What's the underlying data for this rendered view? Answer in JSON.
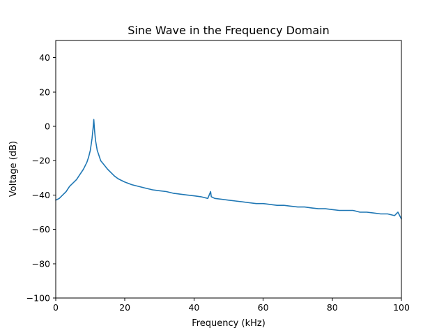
{
  "chart_data": {
    "type": "line",
    "title": "Sine Wave in the Frequency Domain",
    "xlabel": "Frequency (kHz)",
    "ylabel": "Voltage (dB)",
    "xlim": [
      0,
      100
    ],
    "ylim": [
      -100,
      50
    ],
    "xticks": [
      0,
      20,
      40,
      60,
      80,
      100
    ],
    "yticks": [
      -100,
      -80,
      -60,
      -40,
      -20,
      0,
      20,
      40
    ],
    "xtick_labels": [
      "0",
      "20",
      "40",
      "60",
      "80",
      "100"
    ],
    "ytick_labels": [
      "−100",
      "−80",
      "−60",
      "−40",
      "−20",
      "0",
      "20",
      "40"
    ],
    "grid": false,
    "legend": false,
    "color": "#1f77b4",
    "series": [
      {
        "x": [
          0,
          1,
          2,
          3,
          4,
          5,
          6,
          7,
          8,
          9,
          9.5,
          10,
          10.5,
          10.8,
          11,
          11.2,
          11.5,
          12,
          12.5,
          13,
          14,
          15,
          16,
          17,
          18,
          19,
          20,
          22,
          24,
          26,
          28,
          30,
          32,
          34,
          36,
          38,
          40,
          42,
          44,
          44.8,
          45,
          46,
          48,
          50,
          52,
          54,
          56,
          58,
          60,
          62,
          64,
          66,
          68,
          70,
          72,
          74,
          76,
          78,
          80,
          82,
          84,
          86,
          88,
          90,
          92,
          94,
          96,
          98,
          99,
          100
        ],
        "values": [
          -43,
          -42,
          -40,
          -38,
          -35,
          -33,
          -31,
          -28,
          -25,
          -21,
          -18,
          -14,
          -7,
          -1,
          4,
          -2,
          -8,
          -14,
          -17,
          -20,
          -22.5,
          -25,
          -27,
          -29,
          -30.5,
          -31.5,
          -32.5,
          -34,
          -35,
          -36,
          -37,
          -37.5,
          -38,
          -39,
          -39.5,
          -40,
          -40.5,
          -41,
          -42,
          -38,
          -41,
          -42,
          -42.5,
          -43,
          -43.5,
          -44,
          -44.5,
          -45,
          -45,
          -45.5,
          -46,
          -46,
          -46.5,
          -47,
          -47,
          -47.5,
          -48,
          -48,
          -48.5,
          -49,
          -49,
          -49,
          -50,
          -50,
          -50.5,
          -51,
          -51,
          -52,
          -50,
          -54
        ]
      }
    ]
  }
}
